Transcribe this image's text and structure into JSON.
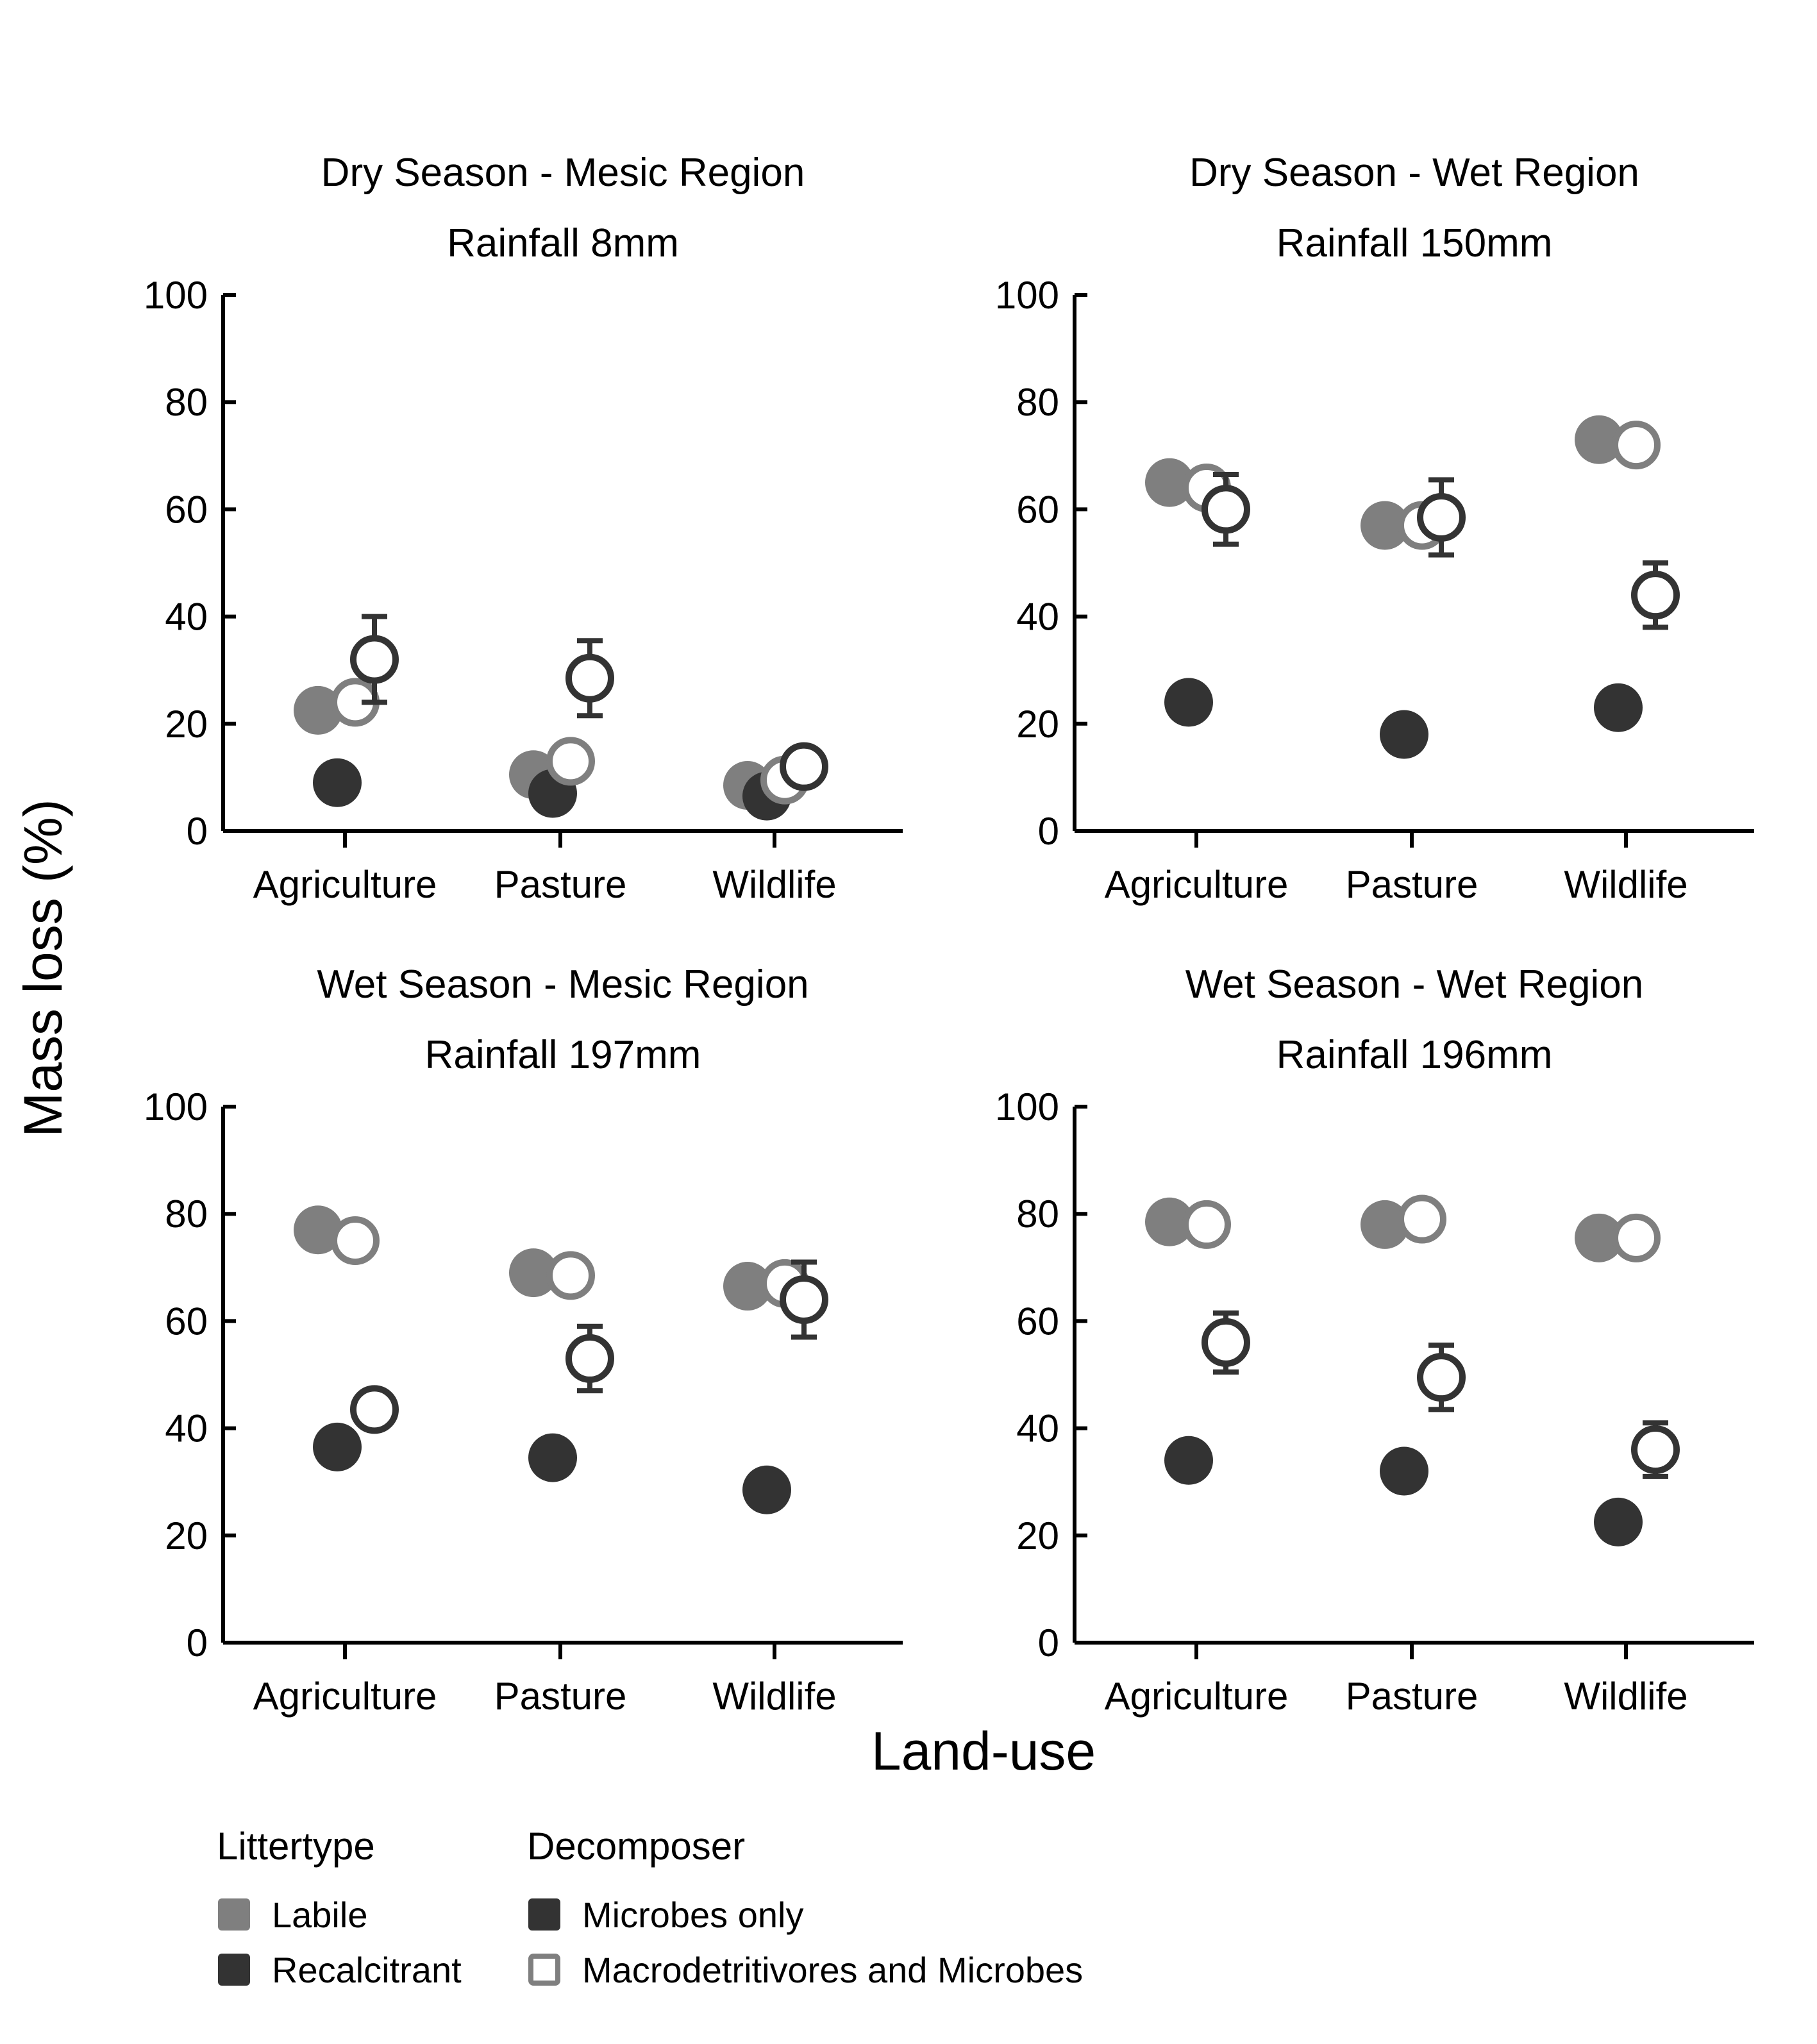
{
  "figure": {
    "y_axis_label": "Mass loss (%)",
    "x_axis_label": "Land-use",
    "colors": {
      "labile": "#7f7f7f",
      "recalcitrant": "#333333",
      "axis": "#000000"
    },
    "legend": {
      "littertype_title": "Littertype",
      "decomposer_title": "Decomposer",
      "littertype_items": [
        "Labile",
        "Recalcitrant"
      ],
      "decomposer_items": [
        "Microbes only",
        "Macrodetritivores and Microbes"
      ]
    }
  },
  "chart_data": [
    {
      "type": "scatter",
      "title": "Dry Season - Mesic Region",
      "subtitle": "Rainfall 8mm",
      "categories": [
        "Agriculture",
        "Pasture",
        "Wildlife"
      ],
      "y_ticks": [
        "0",
        "20",
        "40",
        "60",
        "80",
        "100"
      ],
      "ylim": [
        0,
        100
      ],
      "series": [
        {
          "littertype": "Labile",
          "decomposer": "Microbes only",
          "values": [
            22.5,
            10.5,
            8.5
          ],
          "err": [
            2.5,
            1.5,
            1
          ]
        },
        {
          "littertype": "Labile",
          "decomposer": "Macrodetritivores and Microbes",
          "values": [
            24,
            13,
            9.5
          ],
          "err": [
            2.5,
            1.5,
            1
          ]
        },
        {
          "littertype": "Recalcitrant",
          "decomposer": "Microbes only",
          "values": [
            9,
            7,
            6.5
          ],
          "err": [
            1,
            1,
            1
          ]
        },
        {
          "littertype": "Recalcitrant",
          "decomposer": "Macrodetritivores and Microbes",
          "values": [
            32,
            28.5,
            12
          ],
          "err": [
            8,
            7,
            2
          ]
        }
      ]
    },
    {
      "type": "scatter",
      "title": "Dry Season - Wet Region",
      "subtitle": "Rainfall 150mm",
      "categories": [
        "Agriculture",
        "Pasture",
        "Wildlife"
      ],
      "y_ticks": [
        "0",
        "20",
        "40",
        "60",
        "80",
        "100"
      ],
      "ylim": [
        0,
        100
      ],
      "series": [
        {
          "littertype": "Labile",
          "decomposer": "Microbes only",
          "values": [
            65,
            57,
            73
          ],
          "err": [
            1,
            2,
            1
          ]
        },
        {
          "littertype": "Labile",
          "decomposer": "Macrodetritivores and Microbes",
          "values": [
            64,
            57,
            72
          ],
          "err": [
            1,
            2,
            1
          ]
        },
        {
          "littertype": "Recalcitrant",
          "decomposer": "Microbes only",
          "values": [
            24,
            18,
            23
          ],
          "err": [
            1,
            1,
            1
          ]
        },
        {
          "littertype": "Recalcitrant",
          "decomposer": "Macrodetritivores and Microbes",
          "values": [
            60,
            58.5,
            44
          ],
          "err": [
            6.5,
            7,
            6
          ]
        }
      ]
    },
    {
      "type": "scatter",
      "title": "Wet Season - Mesic Region",
      "subtitle": "Rainfall 197mm",
      "categories": [
        "Agriculture",
        "Pasture",
        "Wildlife"
      ],
      "y_ticks": [
        "0",
        "20",
        "40",
        "60",
        "80",
        "100"
      ],
      "ylim": [
        0,
        100
      ],
      "series": [
        {
          "littertype": "Labile",
          "decomposer": "Microbes only",
          "values": [
            77,
            69,
            66.5
          ],
          "err": [
            1,
            1,
            1
          ]
        },
        {
          "littertype": "Labile",
          "decomposer": "Macrodetritivores and Microbes",
          "values": [
            75,
            68.5,
            67
          ],
          "err": [
            1,
            1,
            1
          ]
        },
        {
          "littertype": "Recalcitrant",
          "decomposer": "Microbes only",
          "values": [
            36.5,
            34.5,
            28.5
          ],
          "err": [
            1,
            1,
            1
          ]
        },
        {
          "littertype": "Recalcitrant",
          "decomposer": "Macrodetritivores and Microbes",
          "values": [
            43.5,
            53,
            64
          ],
          "err": [
            2,
            6,
            7
          ]
        }
      ]
    },
    {
      "type": "scatter",
      "title": "Wet Season - Wet Region",
      "subtitle": "Rainfall 196mm",
      "categories": [
        "Agriculture",
        "Pasture",
        "Wildlife"
      ],
      "y_ticks": [
        "0",
        "20",
        "40",
        "60",
        "80",
        "100"
      ],
      "ylim": [
        0,
        100
      ],
      "series": [
        {
          "littertype": "Labile",
          "decomposer": "Microbes only",
          "values": [
            78.5,
            78,
            75.5
          ],
          "err": [
            1,
            1,
            1
          ]
        },
        {
          "littertype": "Labile",
          "decomposer": "Macrodetritivores and Microbes",
          "values": [
            78,
            79,
            75.5
          ],
          "err": [
            1,
            1,
            1
          ]
        },
        {
          "littertype": "Recalcitrant",
          "decomposer": "Microbes only",
          "values": [
            34,
            32,
            22.5
          ],
          "err": [
            1,
            1,
            1
          ]
        },
        {
          "littertype": "Recalcitrant",
          "decomposer": "Macrodetritivores and Microbes",
          "values": [
            56,
            49.5,
            36
          ],
          "err": [
            5.5,
            6,
            5
          ]
        }
      ]
    }
  ]
}
